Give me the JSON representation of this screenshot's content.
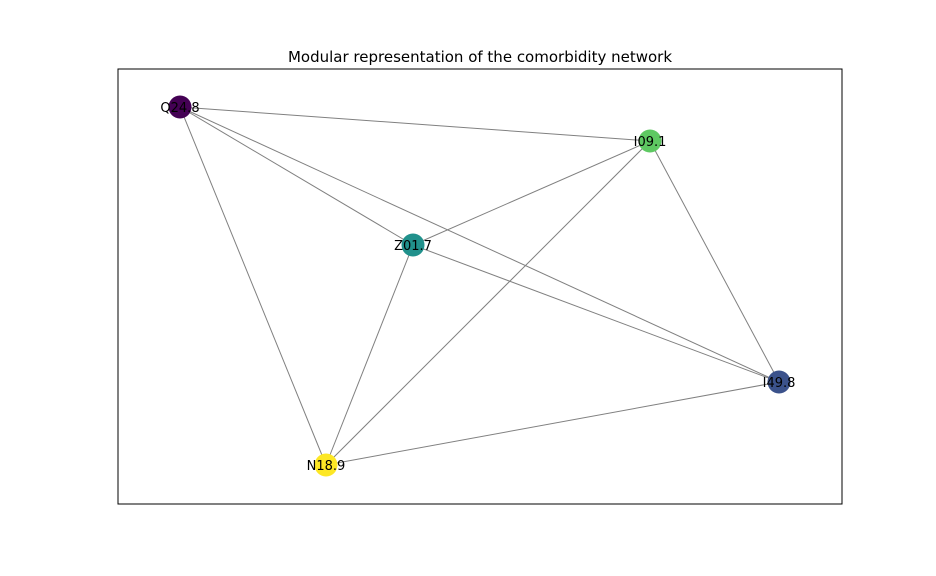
{
  "figure": {
    "title": "Modular representation of the comorbidity network"
  },
  "graph": {
    "nodes": [
      {
        "id": "Q24.8",
        "label": "Q24.8",
        "color": "#440154"
      },
      {
        "id": "I09.1",
        "label": "I09.1",
        "color": "#5ec962"
      },
      {
        "id": "Z01.7",
        "label": "Z01.7",
        "color": "#21918c"
      },
      {
        "id": "I49.8",
        "label": "I49.8",
        "color": "#3b528b"
      },
      {
        "id": "N18.9",
        "label": "N18.9",
        "color": "#fde725"
      }
    ],
    "edges": [
      [
        "Q24.8",
        "I09.1"
      ],
      [
        "Q24.8",
        "Z01.7"
      ],
      [
        "Q24.8",
        "I49.8"
      ],
      [
        "Q24.8",
        "N18.9"
      ],
      [
        "I09.1",
        "Z01.7"
      ],
      [
        "I09.1",
        "I49.8"
      ],
      [
        "I09.1",
        "N18.9"
      ],
      [
        "Z01.7",
        "I49.8"
      ],
      [
        "Z01.7",
        "N18.9"
      ],
      [
        "I49.8",
        "N18.9"
      ]
    ],
    "edge_color": "#808080",
    "frame_color": "#000000"
  }
}
